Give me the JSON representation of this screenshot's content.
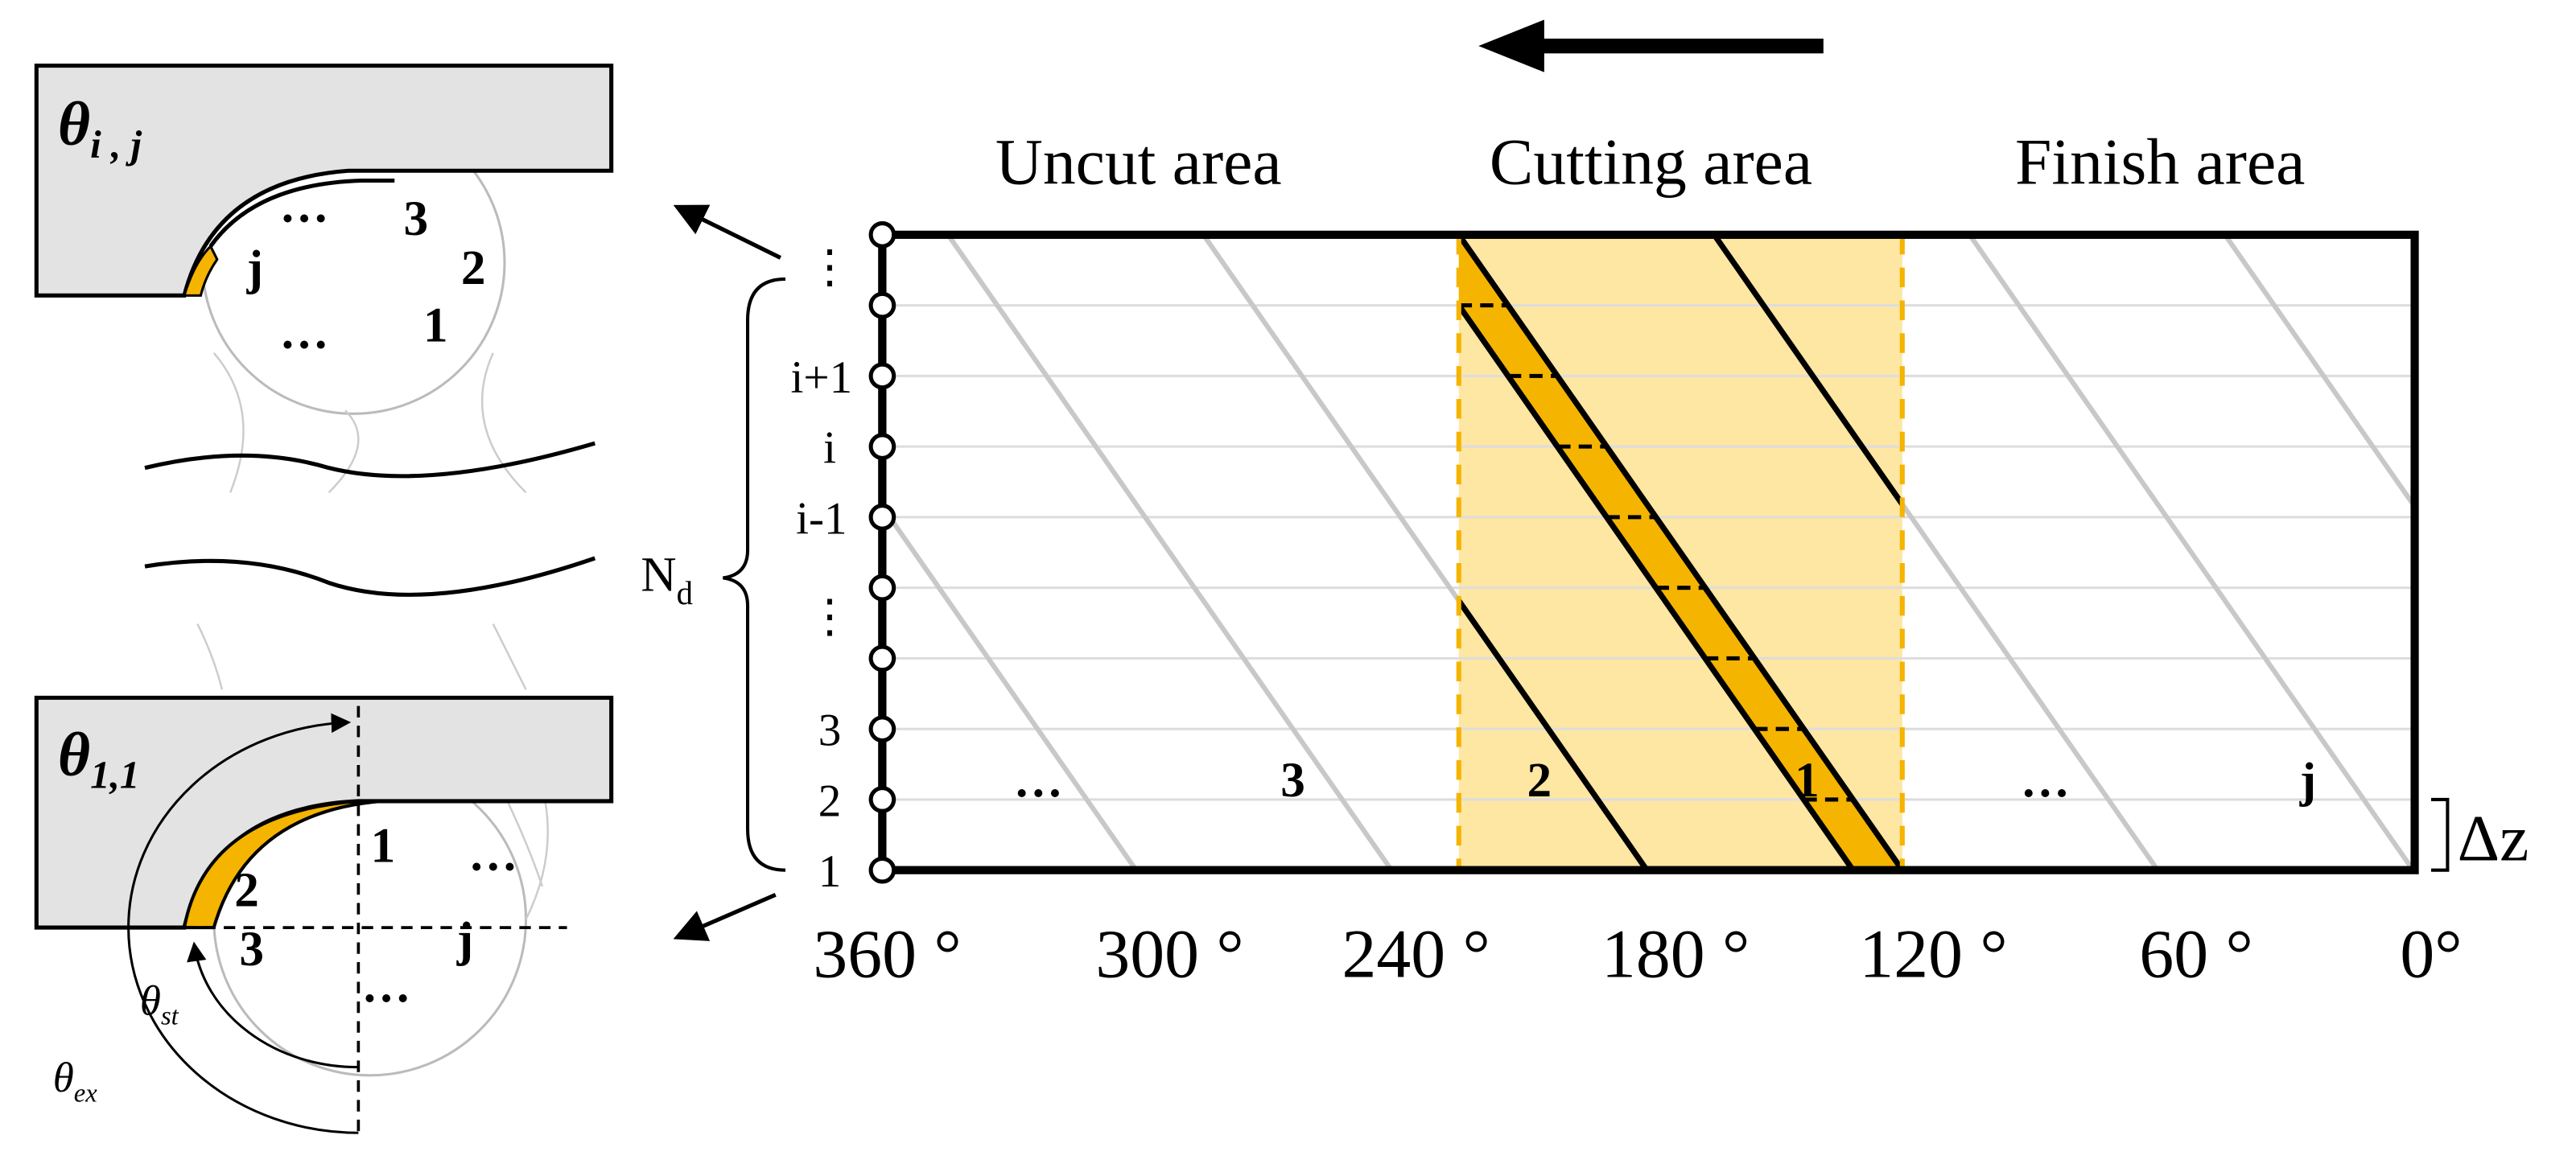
{
  "regions": [
    "Uncut area",
    "Cutting area",
    "Finish area"
  ],
  "angle_labels": [
    "360 °",
    "300 °",
    "240 °",
    "180 °",
    "120 °",
    "60 °",
    "0°"
  ],
  "row_labels": [
    "⋮",
    "i+1",
    "i",
    "i-1",
    "⋮",
    "3",
    "2",
    "1"
  ],
  "row_count_label": {
    "main": "N",
    "sub": "d"
  },
  "step_label": "Δz",
  "flute_labels": [
    "…",
    "3",
    "2",
    "1",
    "…",
    "j"
  ],
  "top_panel": {
    "angle": {
      "symbol": "θ",
      "sub": "i , j"
    },
    "flutes": [
      "…",
      "3",
      "2",
      "j",
      "…",
      "1"
    ]
  },
  "bottom_panel": {
    "angle": {
      "symbol": "θ",
      "sub": "1,1"
    },
    "flutes": [
      "1",
      "…",
      "2",
      "3",
      "j",
      "…"
    ],
    "start_angle": {
      "symbol": "θ",
      "sub": "st"
    },
    "exit_angle": {
      "symbol": "θ",
      "sub": "ex"
    }
  }
}
